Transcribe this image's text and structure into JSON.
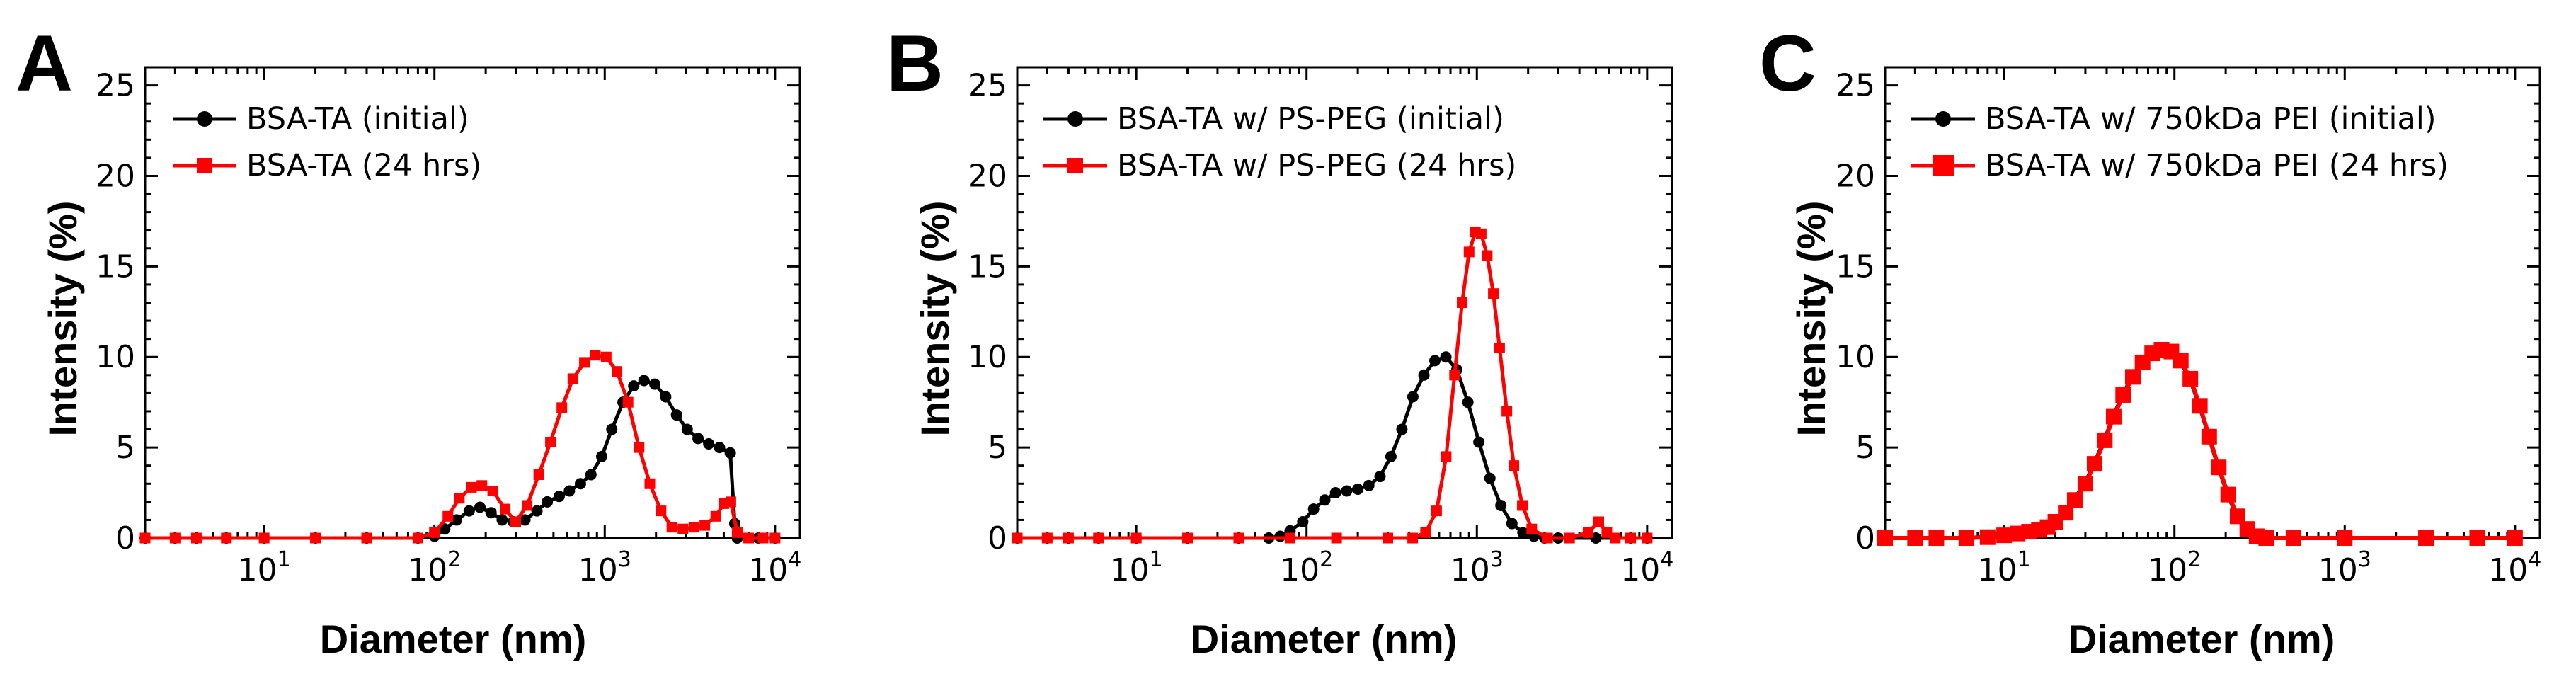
{
  "chart_data": [
    {
      "type": "line",
      "panel_label": "A",
      "xscale": "log",
      "xlabel": "Diameter (nm)",
      "ylabel": "Intensity (%)",
      "xlim": [
        2,
        14000
      ],
      "ylim": [
        0,
        26
      ],
      "yticks": [
        "0",
        "5",
        "10",
        "15",
        "20",
        "25"
      ],
      "xtick_labels": [
        {
          "base": "10",
          "exp": "1"
        },
        {
          "base": "10",
          "exp": "2"
        },
        {
          "base": "10",
          "exp": "3"
        },
        {
          "base": "10",
          "exp": "4"
        }
      ],
      "legend_position": "top-left",
      "series": [
        {
          "name": "BSA-TA (initial)",
          "color": "#000000",
          "marker": "circle",
          "x": [
            2,
            3,
            4,
            6,
            10,
            20,
            40,
            80,
            100,
            115,
            135,
            160,
            185,
            215,
            250,
            290,
            340,
            400,
            460,
            540,
            620,
            720,
            830,
            960,
            1100,
            1280,
            1480,
            1700,
            1970,
            2280,
            2640,
            3050,
            3530,
            4080,
            4720,
            5460,
            5800,
            6000,
            8000,
            10000
          ],
          "y": [
            0,
            0,
            0,
            0,
            0,
            0,
            0,
            0,
            0.1,
            0.5,
            1.0,
            1.5,
            1.7,
            1.4,
            1.0,
            0.9,
            1.0,
            1.5,
            2.0,
            2.3,
            2.6,
            3.0,
            3.5,
            4.5,
            6.0,
            7.5,
            8.4,
            8.7,
            8.5,
            7.8,
            6.8,
            6.0,
            5.5,
            5.2,
            5.0,
            4.7,
            0.8,
            0,
            0,
            0
          ]
        },
        {
          "name": "BSA-TA (24 hrs)",
          "color": "#ff0000",
          "marker": "square",
          "x": [
            2,
            3,
            4,
            6,
            10,
            20,
            40,
            80,
            100,
            120,
            140,
            165,
            190,
            220,
            260,
            300,
            350,
            410,
            480,
            560,
            650,
            760,
            880,
            1020,
            1180,
            1370,
            1590,
            1840,
            2140,
            2480,
            2880,
            3340,
            3870,
            4490,
            5000,
            5500,
            6000,
            7000,
            8500,
            10000
          ],
          "y": [
            0,
            0,
            0,
            0,
            0,
            0,
            0,
            0,
            0.3,
            1.2,
            2.2,
            2.8,
            2.9,
            2.6,
            1.6,
            0.9,
            1.8,
            3.5,
            5.3,
            7.2,
            8.8,
            9.7,
            10.1,
            10.0,
            9.2,
            7.5,
            5.0,
            3.0,
            1.5,
            0.6,
            0.5,
            0.6,
            0.7,
            1.2,
            1.9,
            2.0,
            0.3,
            0,
            0,
            0
          ]
        }
      ]
    },
    {
      "type": "line",
      "panel_label": "B",
      "xscale": "log",
      "xlabel": "Diameter (nm)",
      "ylabel": "Intensity (%)",
      "xlim": [
        2,
        14000
      ],
      "ylim": [
        0,
        26
      ],
      "yticks": [
        "0",
        "5",
        "10",
        "15",
        "20",
        "25"
      ],
      "xtick_labels": [
        {
          "base": "10",
          "exp": "1"
        },
        {
          "base": "10",
          "exp": "2"
        },
        {
          "base": "10",
          "exp": "3"
        },
        {
          "base": "10",
          "exp": "4"
        }
      ],
      "legend_position": "top-left",
      "series": [
        {
          "name": "BSA-TA w/ PS-PEG (initial)",
          "color": "#000000",
          "marker": "circle",
          "x": [
            2,
            3,
            4,
            6,
            10,
            20,
            40,
            60,
            70,
            80,
            95,
            110,
            128,
            148,
            172,
            200,
            232,
            270,
            313,
            363,
            421,
            489,
            567,
            658,
            763,
            886,
            1028,
            1193,
            1384,
            1606,
            1863,
            2162,
            2500,
            3000,
            5000,
            8000,
            10000
          ],
          "y": [
            0,
            0,
            0,
            0,
            0,
            0,
            0,
            0,
            0.1,
            0.4,
            0.9,
            1.6,
            2.1,
            2.5,
            2.6,
            2.7,
            2.9,
            3.4,
            4.5,
            6.0,
            7.8,
            9.0,
            9.8,
            10.0,
            9.3,
            7.5,
            5.3,
            3.3,
            1.8,
            0.8,
            0.3,
            0.1,
            0,
            0,
            0,
            0,
            0
          ]
        },
        {
          "name": "BSA-TA w/ PS-PEG (24 hrs)",
          "color": "#ff0000",
          "marker": "square",
          "x": [
            2,
            3,
            4,
            6,
            10,
            20,
            40,
            80,
            150,
            300,
            420,
            500,
            580,
            660,
            740,
            820,
            900,
            980,
            1060,
            1150,
            1250,
            1360,
            1500,
            1650,
            1850,
            2100,
            2600,
            3500,
            4500,
            5200,
            5800,
            6500,
            8000,
            10000
          ],
          "y": [
            0,
            0,
            0,
            0,
            0,
            0,
            0,
            0,
            0,
            0,
            0,
            0.3,
            1.5,
            4.5,
            9.0,
            13.0,
            15.8,
            16.9,
            16.8,
            15.6,
            13.5,
            10.5,
            7.0,
            4.0,
            1.8,
            0.5,
            0,
            0,
            0.3,
            0.9,
            0.3,
            0,
            0,
            0
          ]
        }
      ]
    },
    {
      "type": "line",
      "panel_label": "C",
      "xscale": "log",
      "xlabel": "Diameter (nm)",
      "ylabel": "Intensity (%)",
      "xlim": [
        2,
        14000
      ],
      "ylim": [
        0,
        26
      ],
      "yticks": [
        "0",
        "5",
        "10",
        "15",
        "20",
        "25"
      ],
      "xtick_labels": [
        {
          "base": "10",
          "exp": "1"
        },
        {
          "base": "10",
          "exp": "2"
        },
        {
          "base": "10",
          "exp": "3"
        },
        {
          "base": "10",
          "exp": "4"
        }
      ],
      "legend_position": "top-left",
      "series": [
        {
          "name": "BSA-TA w/ 750kDa PEI (initial)",
          "color": "#000000",
          "marker": "circle",
          "x": [
            2,
            3,
            4,
            6,
            8,
            10,
            12,
            14,
            16,
            18,
            20,
            23,
            26,
            30,
            34,
            39,
            44,
            50,
            57,
            65,
            74,
            84,
            96,
            109,
            124,
            141,
            160,
            182,
            207,
            235,
            268,
            304,
            346,
            500,
            1000,
            3000,
            6000,
            10000
          ],
          "y": [
            0,
            0,
            0,
            0,
            0.1,
            0.2,
            0.3,
            0.4,
            0.5,
            0.7,
            1.0,
            1.5,
            2.2,
            3.1,
            4.2,
            5.5,
            6.8,
            8.0,
            9.0,
            9.8,
            10.2,
            10.3,
            10.2,
            9.7,
            8.7,
            7.2,
            5.5,
            3.8,
            2.3,
            1.1,
            0.4,
            0.1,
            0,
            0,
            0,
            0,
            0,
            0
          ]
        },
        {
          "name": "BSA-TA w/ 750kDa PEI (24 hrs)",
          "color": "#ff0000",
          "marker": "square",
          "x": [
            2,
            3,
            4,
            6,
            8,
            10,
            12,
            14,
            16,
            18,
            20,
            23,
            26,
            30,
            34,
            39,
            44,
            50,
            57,
            65,
            74,
            84,
            96,
            109,
            124,
            141,
            160,
            182,
            207,
            235,
            268,
            304,
            346,
            500,
            1000,
            3000,
            6000,
            10000
          ],
          "y": [
            0,
            0,
            0,
            0,
            0.05,
            0.15,
            0.25,
            0.35,
            0.45,
            0.6,
            0.9,
            1.4,
            2.1,
            3.0,
            4.1,
            5.4,
            6.7,
            7.9,
            8.9,
            9.7,
            10.2,
            10.4,
            10.3,
            9.8,
            8.8,
            7.3,
            5.6,
            3.9,
            2.4,
            1.2,
            0.5,
            0.1,
            0,
            0,
            0,
            0,
            0,
            0
          ]
        }
      ]
    }
  ]
}
